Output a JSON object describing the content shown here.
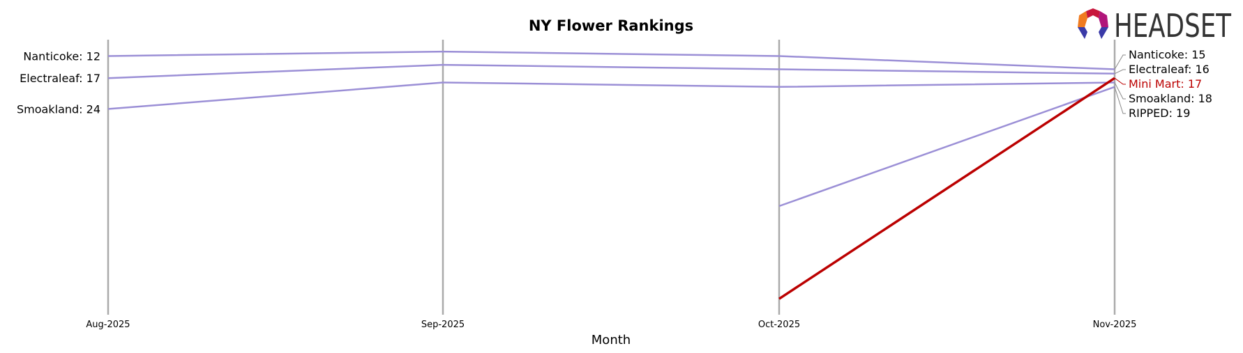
{
  "chart_data": {
    "type": "line",
    "title": "NY Flower Rankings",
    "xlabel": "Month",
    "ylabel": "",
    "categories": [
      "Aug-2025",
      "Sep-2025",
      "Oct-2025",
      "Nov-2025"
    ],
    "y_inverted": true,
    "ylim": [
      8.3,
      70.6
    ],
    "grid": "vertical lines at each month",
    "series": [
      {
        "name": "Nanticoke",
        "values": [
          12,
          11,
          12,
          15
        ],
        "color": "#9b8fd6",
        "highlight": false
      },
      {
        "name": "Electraleaf",
        "values": [
          17,
          14,
          15,
          16
        ],
        "color": "#9b8fd6",
        "highlight": false
      },
      {
        "name": "Smoakland",
        "values": [
          24,
          18,
          19,
          18
        ],
        "color": "#9b8fd6",
        "highlight": false
      },
      {
        "name": "RIPPED",
        "values": [
          null,
          null,
          46,
          19
        ],
        "color": "#9b8fd6",
        "highlight": false
      },
      {
        "name": "Mini Mart",
        "values": [
          null,
          null,
          67,
          17
        ],
        "color": "#bb0000",
        "highlight": true
      }
    ],
    "start_labels": [
      "Nanticoke: 12",
      "Electraleaf: 17",
      "Smoakland: 24"
    ],
    "end_labels": [
      "Nanticoke: 15",
      "Electraleaf: 16",
      "Mini Mart: 17",
      "Smoakland: 18",
      "RIPPED: 19"
    ]
  },
  "logo": {
    "text": "HEADSET"
  }
}
